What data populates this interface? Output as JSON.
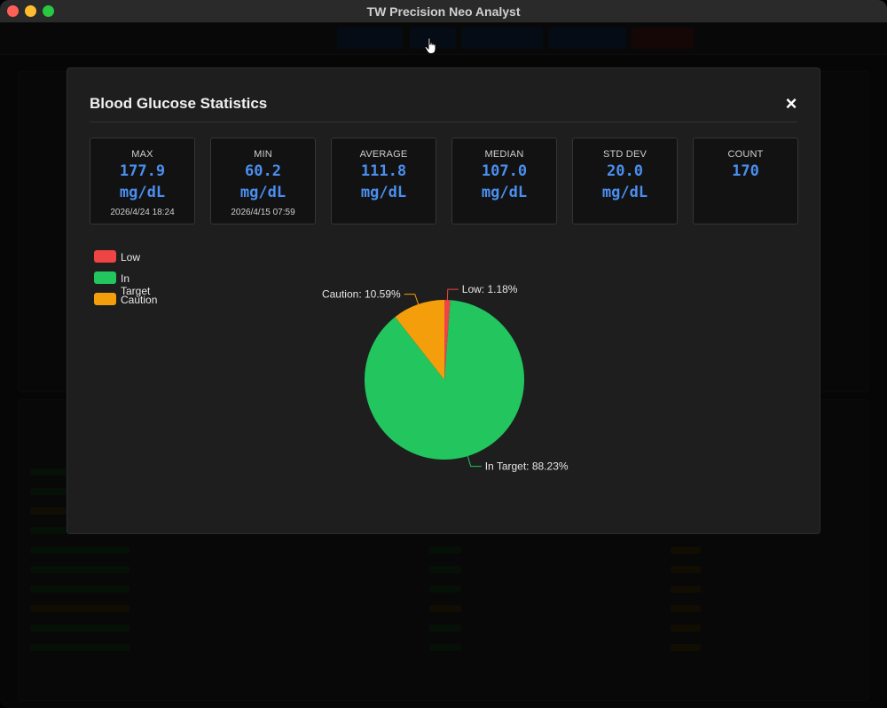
{
  "window": {
    "title": "TW Precision Neo Analyst"
  },
  "modal": {
    "title": "Blood Glucose Statistics",
    "close_icon": "close-icon",
    "stats": [
      {
        "label": "MAX",
        "value": "177.9",
        "unit": "mg/dL",
        "sub": "2026/4/24 18:24"
      },
      {
        "label": "MIN",
        "value": "60.2",
        "unit": "mg/dL",
        "sub": "2026/4/15 07:59"
      },
      {
        "label": "AVERAGE",
        "value": "111.8",
        "unit": "mg/dL",
        "sub": ""
      },
      {
        "label": "MEDIAN",
        "value": "107.0",
        "unit": "mg/dL",
        "sub": ""
      },
      {
        "label": "STD DEV",
        "value": "20.0",
        "unit": "mg/dL",
        "sub": ""
      },
      {
        "label": "COUNT",
        "value": "170",
        "unit": "",
        "sub": ""
      }
    ],
    "legend": [
      {
        "label": "Low",
        "color": "#ef4444"
      },
      {
        "label": "In Target",
        "color": "#22c55e"
      },
      {
        "label": "Caution",
        "color": "#f59e0b"
      }
    ]
  },
  "colors": {
    "accent": "#4a8ff0",
    "low": "#ef4444",
    "in_target": "#22c55e",
    "caution": "#f59e0b"
  },
  "chart_data": {
    "type": "pie",
    "categories": [
      "Low",
      "In Target",
      "Caution"
    ],
    "values": [
      1.18,
      88.23,
      10.59
    ],
    "labels": [
      "Low: 1.18%",
      "In Target: 88.23%",
      "Caution: 10.59%"
    ],
    "colors": [
      "#ef4444",
      "#22c55e",
      "#f59e0b"
    ],
    "legend": "top-left"
  }
}
